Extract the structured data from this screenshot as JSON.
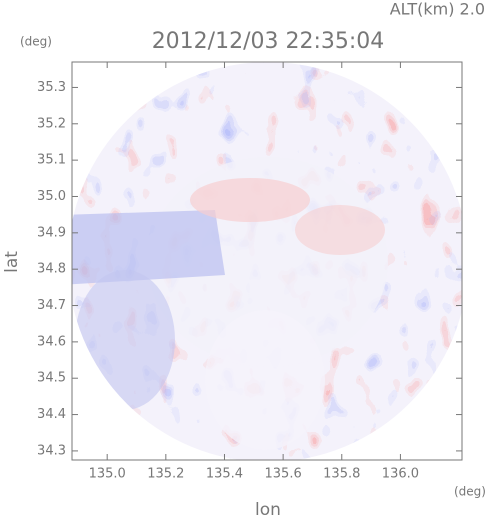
{
  "chart_data": {
    "type": "radar-image",
    "title": "2012/12/03 22:35:04",
    "subtitle": "ALT(km) 2.0",
    "x_label": "lon",
    "y_label": "lat",
    "x_unit": "(deg)",
    "y_unit": "(deg)",
    "xlim": [
      134.88,
      136.21
    ],
    "ylim": [
      34.275,
      35.37
    ],
    "xticks": [
      {
        "value": 135,
        "label": "135.0"
      },
      135.2,
      135.4,
      135.6,
      135.8,
      {
        "value": 136,
        "label": "136.0"
      }
    ],
    "yticks": [
      34.3,
      34.4,
      34.5,
      34.6,
      34.7,
      34.8,
      34.9,
      {
        "value": 35,
        "label": "35.0"
      },
      35.1,
      35.2,
      35.3
    ]
  }
}
